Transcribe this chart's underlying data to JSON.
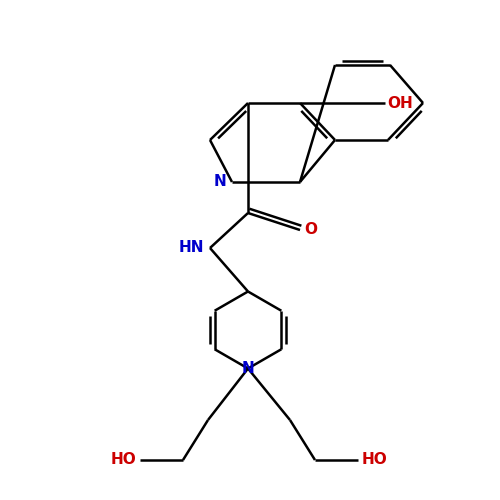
{
  "background_color": "#ffffff",
  "bond_color": "#000000",
  "nitrogen_color": "#0000cc",
  "oxygen_color": "#cc0000",
  "bond_width": 1.8,
  "font_size": 11,
  "xlim": [
    0,
    10
  ],
  "ylim": [
    0,
    10
  ]
}
